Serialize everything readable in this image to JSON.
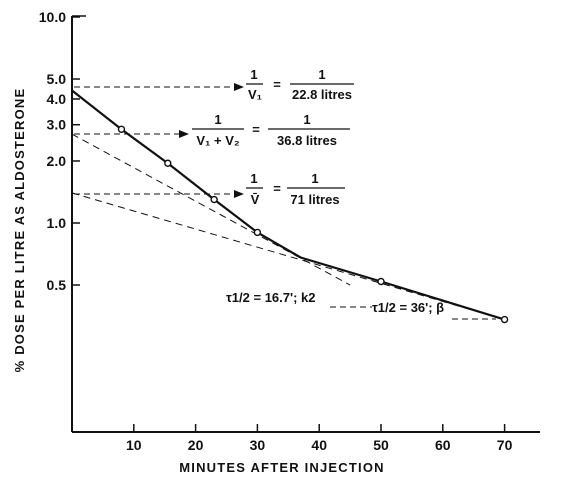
{
  "chart_data": {
    "type": "line",
    "xlabel": "MINUTES AFTER INJECTION",
    "ylabel": "% DOSE PER LITRE AS ALDOSTERONE",
    "xlim": [
      0,
      80
    ],
    "ylim": [
      0.1,
      10
    ],
    "yscale": "log",
    "x_ticks": [
      "10",
      "20",
      "30",
      "40",
      "50",
      "60",
      "70"
    ],
    "y_ticks": [
      "10.0",
      "5.0",
      "4.0",
      "3.0",
      "2.0",
      "1.0",
      "0.5"
    ],
    "y_tick_values": [
      10,
      5,
      4,
      3,
      2,
      1,
      0.5
    ],
    "x_tick_values": [
      10,
      20,
      30,
      40,
      50,
      60,
      70
    ],
    "grid": false,
    "points": {
      "x": [
        8,
        15.5,
        23,
        30,
        50,
        70
      ],
      "y": [
        2.85,
        1.95,
        1.3,
        0.9,
        0.52,
        0.34
      ]
    },
    "fitted_curve": {
      "x": [
        0,
        8,
        15.5,
        23,
        30,
        37,
        50,
        70
      ],
      "y": [
        4.4,
        2.85,
        1.95,
        1.3,
        0.9,
        0.68,
        0.52,
        0.34
      ]
    },
    "dashed_lines": [
      {
        "x": [
          0,
          45
        ],
        "y": [
          2.7,
          0.5
        ]
      },
      {
        "x": [
          0,
          70
        ],
        "y": [
          1.4,
          0.34
        ]
      }
    ],
    "annotations": {
      "v1": {
        "lhs_num": "1",
        "lhs_den": "V₁",
        "eq": "=",
        "rhs_num": "1",
        "rhs_den": "22.8 litres"
      },
      "v12": {
        "lhs_num": "1",
        "lhs_den": "V₁ + V₂",
        "eq": "=",
        "rhs_num": "1",
        "rhs_den": "36.8 litres"
      },
      "vbar": {
        "lhs_num": "1",
        "lhs_den": "V̄",
        "eq": "=",
        "rhs_num": "1",
        "rhs_den": "71 litres"
      },
      "half1": "τ1/2 = 16.7'; k2",
      "half2": "τ1/2 = 36'; β"
    }
  }
}
